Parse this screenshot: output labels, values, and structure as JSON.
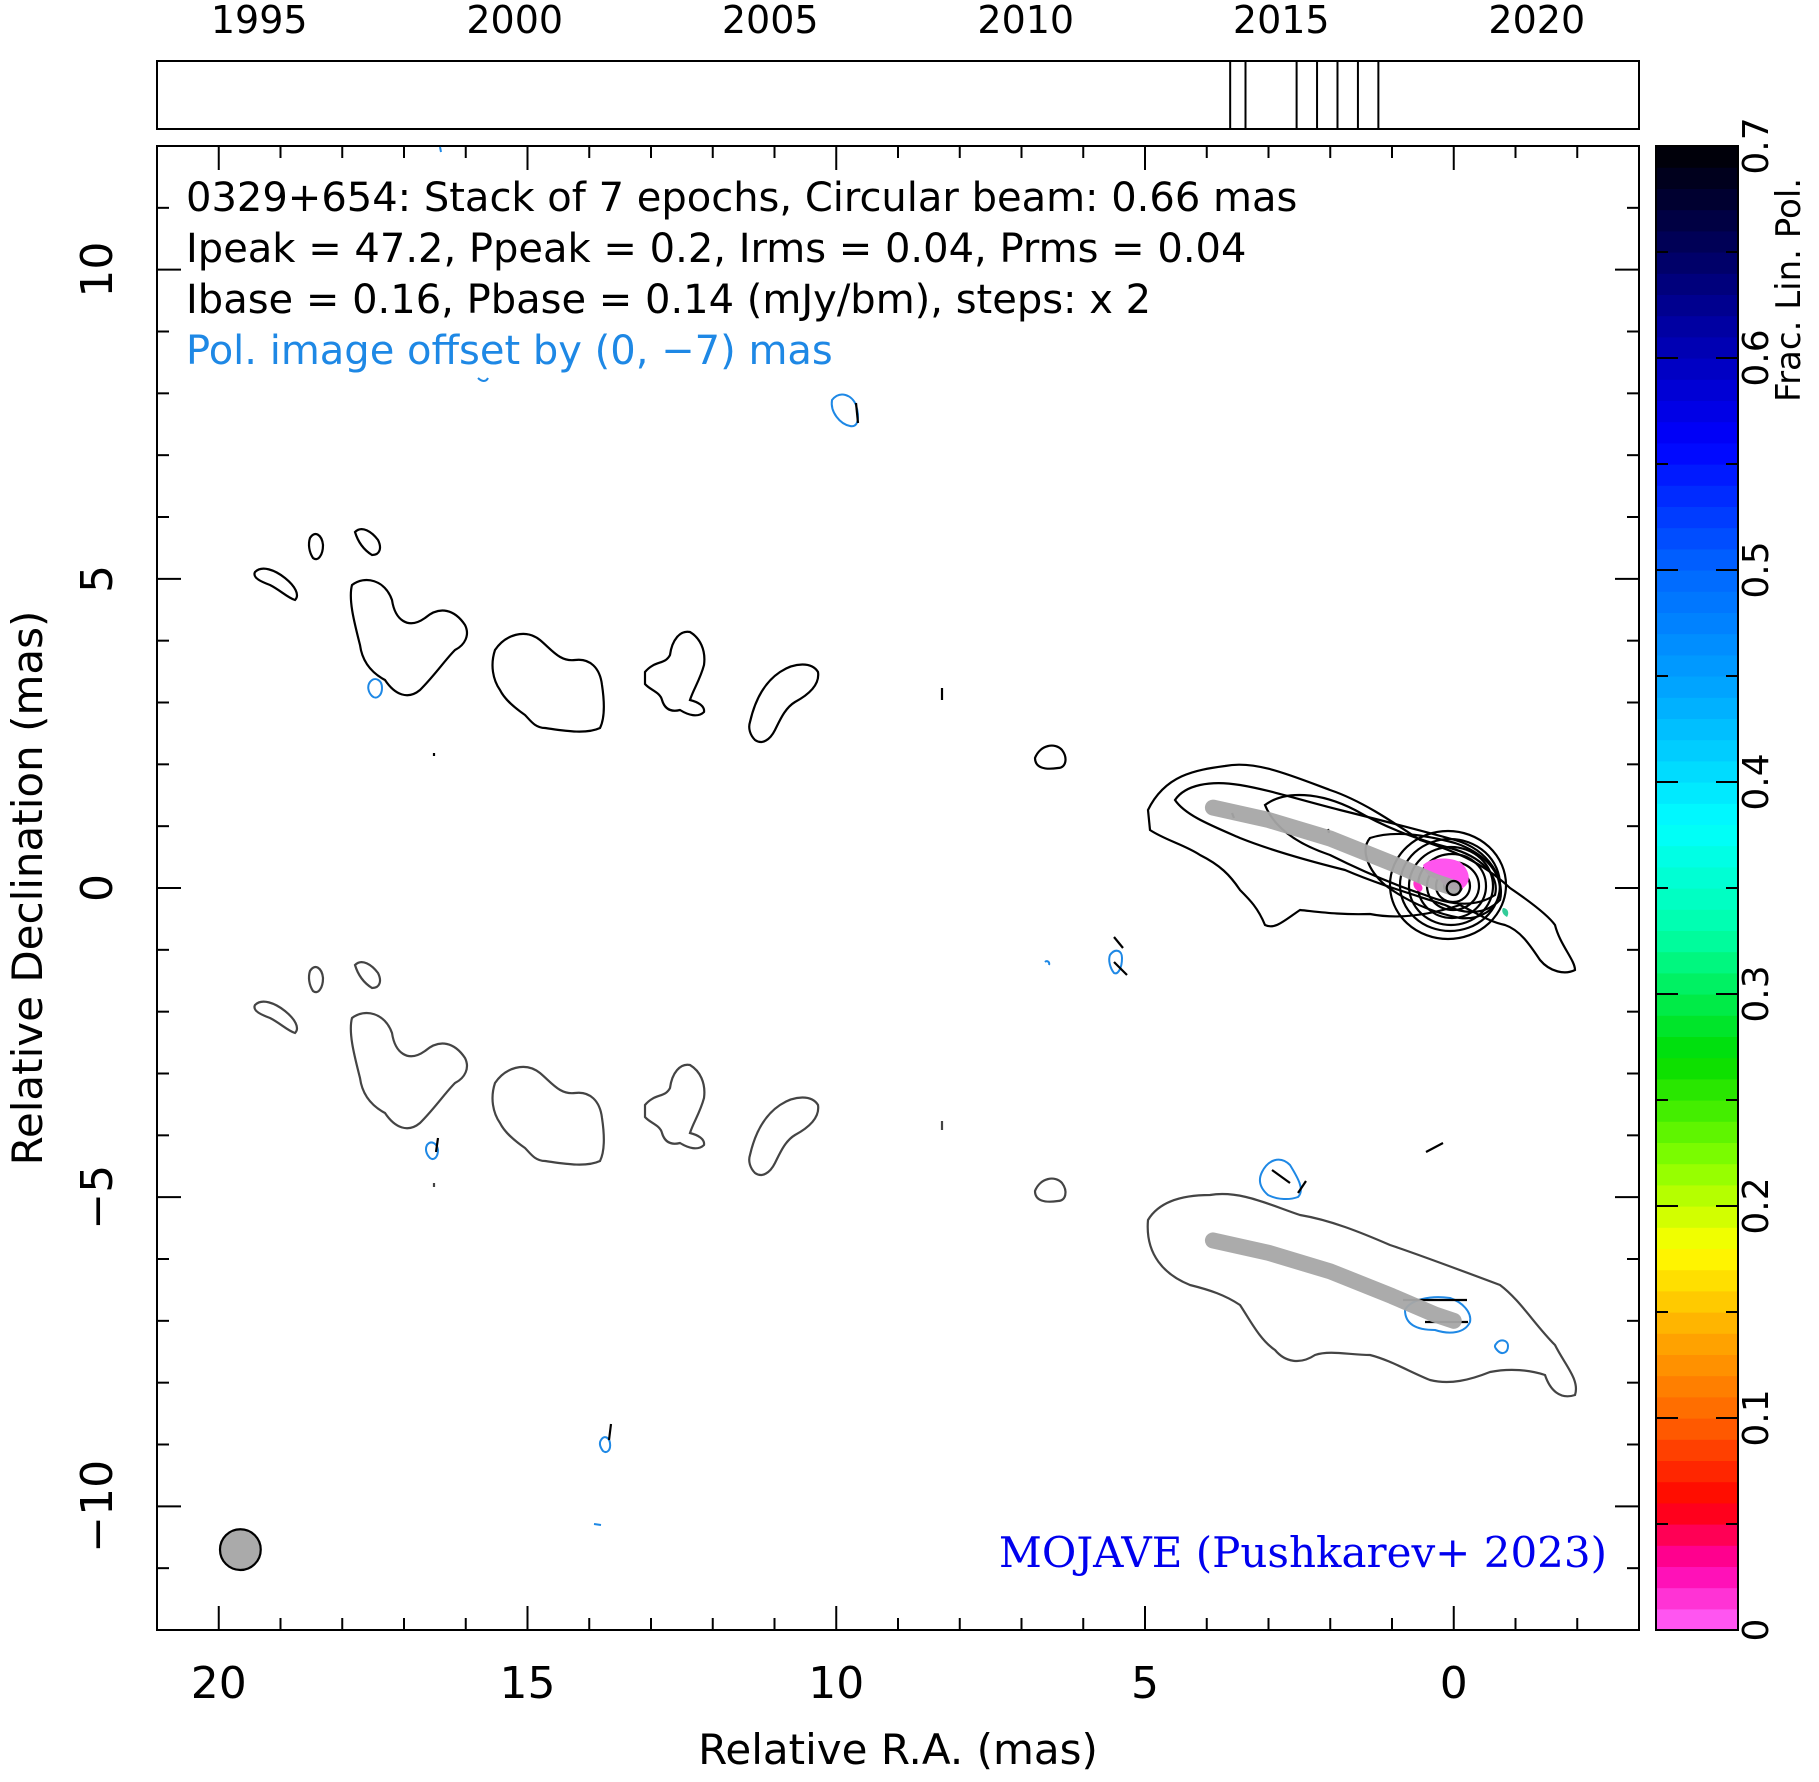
{
  "chart_data": {
    "type": "contour_map",
    "title_lines": [
      "0329+654: Stack of 7 epochs, Circular beam: 0.66 mas",
      "Ipeak = 47.2, Ppeak = 0.2, Irms = 0.04, Prms = 0.04",
      "Ibase = 0.16, Pbase = 0.14 (mJy/bm), steps: x 2"
    ],
    "offset_note": "Pol. image offset by (0, −7) mas",
    "credit": "MOJAVE (Pushkarev+ 2023)",
    "xlabel": "Relative R.A. (mas)",
    "ylabel": "Relative Declination (mas)",
    "colorbar_label": "Frac. Lin. Pol.",
    "xlim": [
      21,
      -3
    ],
    "ylim": [
      -12,
      12
    ],
    "xticks": [
      {
        "value": 20,
        "label": "20"
      },
      {
        "value": 15,
        "label": "15"
      },
      {
        "value": 10,
        "label": "10"
      },
      {
        "value": 5,
        "label": "5"
      },
      {
        "value": 0,
        "label": "0"
      }
    ],
    "yticks": [
      {
        "value": 10,
        "label": "10"
      },
      {
        "value": 5,
        "label": "5"
      },
      {
        "value": 0,
        "label": "0"
      },
      {
        "value": -5,
        "label": "−5"
      },
      {
        "value": -10,
        "label": "−10"
      }
    ],
    "timeline": {
      "range": [
        1993,
        2022
      ],
      "ticks": [
        {
          "value": 1995,
          "label": "1995"
        },
        {
          "value": 2000,
          "label": "2000"
        },
        {
          "value": 2005,
          "label": "2005"
        },
        {
          "value": 2010,
          "label": "2010"
        },
        {
          "value": 2015,
          "label": "2015"
        },
        {
          "value": 2020,
          "label": "2020"
        }
      ],
      "epochs": [
        2014.0,
        2014.3,
        2015.3,
        2015.7,
        2016.1,
        2016.5,
        2016.9
      ]
    },
    "colorbar": {
      "range": [
        0,
        0.7
      ],
      "ticks": [
        {
          "value": 0,
          "label": "0"
        },
        {
          "value": 0.1,
          "label": "0.1"
        },
        {
          "value": 0.2,
          "label": "0.2"
        },
        {
          "value": 0.3,
          "label": "0.3"
        },
        {
          "value": 0.4,
          "label": "0.4"
        },
        {
          "value": 0.5,
          "label": "0.5"
        },
        {
          "value": 0.6,
          "label": "0.6"
        },
        {
          "value": 0.7,
          "label": "0.7"
        }
      ],
      "stops": [
        {
          "v": 0.0,
          "color": "#ff66ff"
        },
        {
          "v": 0.03,
          "color": "#ff00aa"
        },
        {
          "v": 0.06,
          "color": "#ff0000"
        },
        {
          "v": 0.1,
          "color": "#ff6600"
        },
        {
          "v": 0.14,
          "color": "#ffaa00"
        },
        {
          "v": 0.18,
          "color": "#ffff00"
        },
        {
          "v": 0.22,
          "color": "#88ff00"
        },
        {
          "v": 0.27,
          "color": "#00dd00"
        },
        {
          "v": 0.33,
          "color": "#00ffaa"
        },
        {
          "v": 0.38,
          "color": "#00ffff"
        },
        {
          "v": 0.44,
          "color": "#00aaff"
        },
        {
          "v": 0.5,
          "color": "#0066ff"
        },
        {
          "v": 0.56,
          "color": "#0000ff"
        },
        {
          "v": 0.62,
          "color": "#000099"
        },
        {
          "v": 0.7,
          "color": "#000000"
        }
      ]
    },
    "beam": {
      "x": 19.65,
      "y": -10.7,
      "diameter": 0.66
    },
    "core": {
      "x": 0,
      "y": 0
    },
    "ridgelines": [
      {
        "name": "total intensity ridgeline",
        "points": [
          [
            3.9,
            1.3
          ],
          [
            3.0,
            1.1
          ],
          [
            2.0,
            0.8
          ],
          [
            1.0,
            0.4
          ],
          [
            0.3,
            0.1
          ],
          [
            0,
            0
          ]
        ]
      },
      {
        "name": "offset ridgeline",
        "points": [
          [
            3.9,
            -5.7
          ],
          [
            3.0,
            -5.9
          ],
          [
            2.0,
            -6.2
          ],
          [
            1.0,
            -6.6
          ],
          [
            0.3,
            -6.9
          ],
          [
            0,
            -7
          ]
        ]
      }
    ],
    "contour_levels_mJy": [
      0.16,
      0.32,
      0.64,
      1.28,
      2.56,
      5.12,
      10.24,
      20.48,
      40.96
    ]
  }
}
